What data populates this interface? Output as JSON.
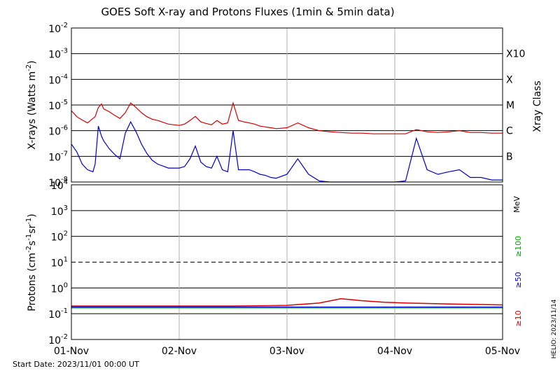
{
  "chart_data": [
    {
      "type": "line",
      "title": "GOES Soft X-ray and Protons Fluxes   (1min & 5min data)",
      "ylabel": "X-rays (Watts m^-2)",
      "ylabel_main": "X-rays (Watts m",
      "ylabel_exp": "-2",
      "ylabel_close": ")",
      "yscale": "log",
      "ylim": [
        1e-08,
        0.01
      ],
      "ytick_exponents": [
        "-8",
        "-7",
        "-6",
        "-5",
        "-4",
        "-3",
        "-2"
      ],
      "right_axis_title": "Xray Class",
      "right_axis_labels": [
        "B",
        "C",
        "M",
        "X",
        "X10"
      ],
      "colors": {
        "long": "#d40000",
        "short": "#0000cc",
        "grid": "#000000",
        "day_grid": "#b0b0b0"
      },
      "series": [
        {
          "color": "#d40000",
          "x": [
            0.0,
            0.05,
            0.1,
            0.15,
            0.2,
            0.22,
            0.25,
            0.28,
            0.3,
            0.35,
            0.4,
            0.45,
            0.5,
            0.55,
            0.6,
            0.65,
            0.7,
            0.75,
            0.8,
            0.9,
            1.0,
            1.05,
            1.1,
            1.15,
            1.2,
            1.25,
            1.3,
            1.35,
            1.4,
            1.45,
            1.5,
            1.55,
            1.6,
            1.65,
            1.7,
            1.75,
            1.8,
            1.85,
            1.9,
            2.0,
            2.1,
            2.2,
            2.3,
            2.4,
            2.5,
            2.6,
            2.7,
            2.8,
            2.9,
            3.0,
            3.1,
            3.2,
            3.3,
            3.4,
            3.5,
            3.6,
            3.7,
            3.8,
            3.9,
            4.0
          ],
          "y": [
            6e-06,
            3.5e-06,
            2.6e-06,
            2e-06,
            3e-06,
            3.5e-06,
            8e-06,
            1.1e-05,
            7e-06,
            5.5e-06,
            4e-06,
            3e-06,
            5e-06,
            1.2e-05,
            8e-06,
            5e-06,
            3.5e-06,
            2.8e-06,
            2.5e-06,
            1.8e-06,
            1.6e-06,
            1.8e-06,
            2.5e-06,
            3.6e-06,
            2.2e-06,
            1.9e-06,
            1.7e-06,
            2.5e-06,
            1.8e-06,
            2e-06,
            1.2e-05,
            2.5e-06,
            2.2e-06,
            2e-06,
            1.8e-06,
            1.5e-06,
            1.4e-06,
            1.3e-06,
            1.2e-06,
            1.3e-06,
            2e-06,
            1.3e-06,
            1e-06,
            9e-07,
            8.5e-07,
            8e-07,
            8e-07,
            7.5e-07,
            7.5e-07,
            7.5e-07,
            7.5e-07,
            1.1e-06,
            9e-07,
            8.5e-07,
            9e-07,
            1e-06,
            8.5e-07,
            8.5e-07,
            8e-07,
            8e-07
          ]
        },
        {
          "color": "#0000cc",
          "x": [
            0.0,
            0.05,
            0.1,
            0.15,
            0.2,
            0.22,
            0.25,
            0.28,
            0.3,
            0.35,
            0.4,
            0.45,
            0.5,
            0.55,
            0.6,
            0.65,
            0.7,
            0.75,
            0.8,
            0.9,
            1.0,
            1.05,
            1.1,
            1.15,
            1.2,
            1.25,
            1.3,
            1.35,
            1.4,
            1.45,
            1.5,
            1.55,
            1.6,
            1.65,
            1.7,
            1.75,
            1.8,
            1.85,
            1.9,
            2.0,
            2.1,
            2.2,
            2.3,
            2.4,
            2.5,
            2.6,
            2.7,
            2.8,
            2.9,
            3.0,
            3.1,
            3.2,
            3.3,
            3.4,
            3.5,
            3.6,
            3.7,
            3.8,
            3.9,
            4.0
          ],
          "y": [
            3e-07,
            1.5e-07,
            5e-08,
            3e-08,
            2.5e-08,
            5e-08,
            1.5e-06,
            6e-07,
            4e-07,
            2e-07,
            1.2e-07,
            8e-08,
            8e-07,
            2.2e-06,
            9e-07,
            3e-07,
            1.3e-07,
            7e-08,
            5e-08,
            3.5e-08,
            3.5e-08,
            4e-08,
            8e-08,
            2.5e-07,
            6e-08,
            4e-08,
            3.5e-08,
            1e-07,
            3e-08,
            2.5e-08,
            1e-06,
            3e-08,
            3e-08,
            3e-08,
            2.5e-08,
            2e-08,
            1.8e-08,
            1.5e-08,
            1.4e-08,
            2e-08,
            8e-08,
            2e-08,
            1.1e-08,
            1e-08,
            1e-08,
            1e-08,
            1e-08,
            1e-08,
            1e-08,
            1e-08,
            1.1e-08,
            5e-07,
            3e-08,
            2e-08,
            2.5e-08,
            3e-08,
            1.5e-08,
            1.5e-08,
            1.2e-08,
            1.2e-08
          ]
        }
      ]
    },
    {
      "type": "line",
      "ylabel": "Protons (cm^-2 s^-1 sr^-1)",
      "ylabel_main": "Protons (cm",
      "ylabel_p1": "-2",
      "ylabel_s": "s",
      "ylabel_p2": "-1",
      "ylabel_sr": "sr",
      "ylabel_p3": "-1",
      "ylabel_close": ")",
      "yscale": "log",
      "ylim": [
        0.01,
        10000
      ],
      "ytick_labels": [
        {
          "base": "10",
          "exp": "-2"
        },
        {
          "base": "10",
          "exp": "-1"
        },
        {
          "base": "10",
          "exp": "0"
        },
        {
          "base": "10",
          "exp": "1"
        },
        {
          "base": "10",
          "exp": "2"
        },
        {
          "base": "10",
          "exp": "3"
        },
        {
          "base": "10",
          "exp": "4"
        }
      ],
      "threshold": 10,
      "energy_unit": "MeV",
      "energy_labels": [
        {
          "text": "≥100",
          "color": "#00aa00"
        },
        {
          "text": "≥50",
          "color": "#0000cc"
        },
        {
          "text": "≥10",
          "color": "#d40000"
        }
      ],
      "series": [
        {
          "color": "#d40000",
          "x": [
            0.0,
            0.5,
            1.0,
            1.5,
            2.0,
            2.3,
            2.5,
            2.7,
            2.9,
            3.1,
            3.3,
            3.5,
            3.7,
            4.0
          ],
          "y": [
            0.2,
            0.2,
            0.2,
            0.2,
            0.21,
            0.26,
            0.38,
            0.32,
            0.28,
            0.26,
            0.25,
            0.24,
            0.23,
            0.22
          ]
        },
        {
          "color": "#0000cc",
          "x": [
            0.0,
            1.0,
            2.0,
            3.0,
            4.0
          ],
          "y": [
            0.18,
            0.18,
            0.18,
            0.18,
            0.18
          ]
        },
        {
          "color": "#00aa00",
          "x": [
            0.0,
            1.0,
            2.0,
            3.0,
            4.0
          ],
          "y": [
            0.17,
            0.17,
            0.17,
            0.17,
            0.17
          ]
        }
      ],
      "x_tick_labels": [
        "01-Nov",
        "02-Nov",
        "03-Nov",
        "04-Nov",
        "05-Nov"
      ],
      "xlim": [
        0,
        4
      ]
    }
  ],
  "footer": {
    "start_date": "Start Date: 2023/11/01 00:00 UT",
    "credit": "HELIO: 2023/11/14"
  }
}
